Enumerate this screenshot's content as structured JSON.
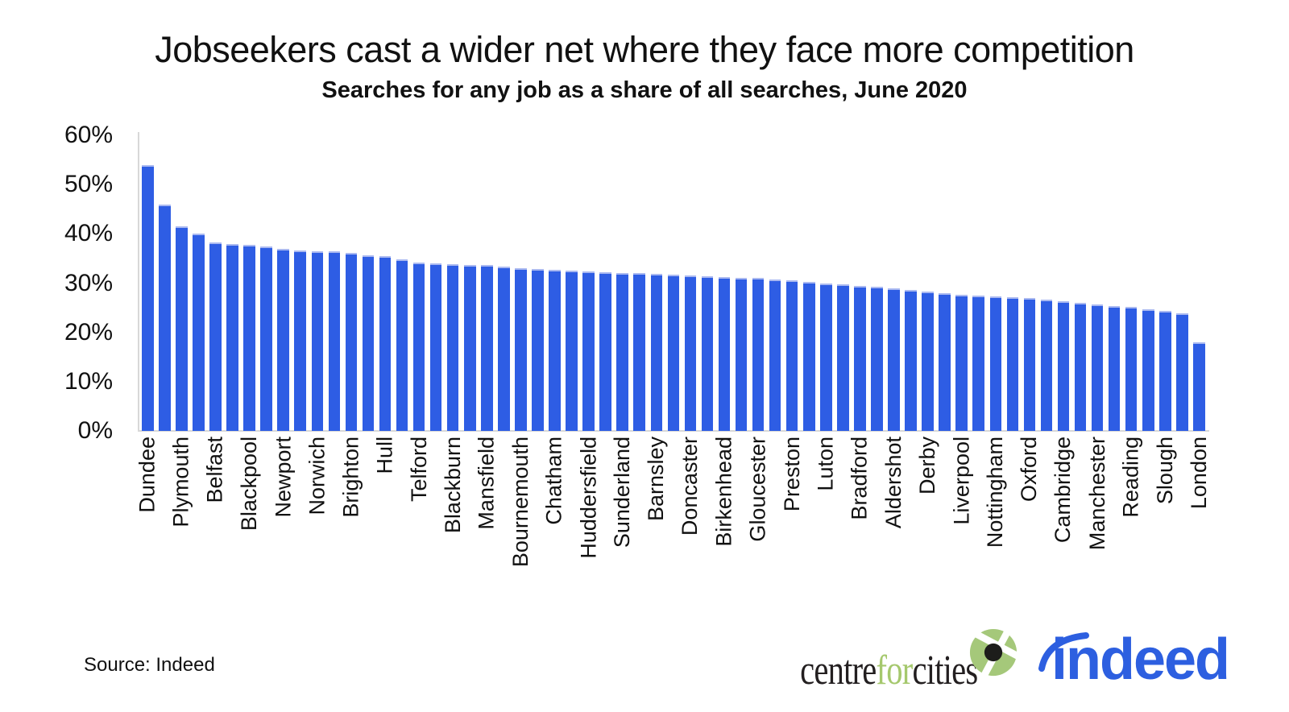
{
  "header": {
    "title": "Jobseekers cast a wider net where they face more competition",
    "subtitle": "Searches for any job as a share of all searches, June 2020"
  },
  "footer": {
    "source": "Source: Indeed",
    "centreforcities": {
      "part1": "centre",
      "part2": "for",
      "part3": "cities"
    },
    "indeed_wordmark": "indeed"
  },
  "colors": {
    "bar": "#2e5de4",
    "bar_top_cap": "#aab9f1",
    "axis_line": "#d8d8d8",
    "text": "#111111",
    "cfc_black": "#231f20",
    "cfc_green": "#a5c86d",
    "indeed_blue": "#2d5fe0"
  },
  "chart_data": {
    "type": "bar",
    "title": "Jobseekers cast a wider net where they face more competition",
    "subtitle": "Searches for any job as a share of all searches, June 2020",
    "unit": "percent",
    "ylim": [
      0,
      60
    ],
    "ytick_values": [
      0,
      10,
      20,
      30,
      40,
      50,
      60
    ],
    "ytick_labels": [
      "0%",
      "10%",
      "20%",
      "30%",
      "40%",
      "50%",
      "60%"
    ],
    "grid": false,
    "legend": "none",
    "note": "63 bars total; only every other bar carries a visible city label",
    "bars": [
      {
        "label": "Dundee",
        "value": 54.0
      },
      {
        "label": "",
        "value": 46.0
      },
      {
        "label": "Plymouth",
        "value": 41.5
      },
      {
        "label": "",
        "value": 40.0
      },
      {
        "label": "Belfast",
        "value": 38.2
      },
      {
        "label": "",
        "value": 38.0
      },
      {
        "label": "Blackpool",
        "value": 37.8
      },
      {
        "label": "",
        "value": 37.4
      },
      {
        "label": "Newport",
        "value": 37.0
      },
      {
        "label": "",
        "value": 36.6
      },
      {
        "label": "Norwich",
        "value": 36.5
      },
      {
        "label": "",
        "value": 36.4
      },
      {
        "label": "Brighton",
        "value": 36.1
      },
      {
        "label": "",
        "value": 35.7
      },
      {
        "label": "Hull",
        "value": 35.4
      },
      {
        "label": "",
        "value": 34.9
      },
      {
        "label": "Telford",
        "value": 34.2
      },
      {
        "label": "",
        "value": 34.0
      },
      {
        "label": "Blackburn",
        "value": 33.8
      },
      {
        "label": "",
        "value": 33.7
      },
      {
        "label": "Mansfield",
        "value": 33.6
      },
      {
        "label": "",
        "value": 33.4
      },
      {
        "label": "Bournemouth",
        "value": 33.1
      },
      {
        "label": "",
        "value": 32.9
      },
      {
        "label": "Chatham",
        "value": 32.7
      },
      {
        "label": "",
        "value": 32.5
      },
      {
        "label": "Huddersfield",
        "value": 32.3
      },
      {
        "label": "",
        "value": 32.2
      },
      {
        "label": "Sunderland",
        "value": 32.1
      },
      {
        "label": "",
        "value": 32.0
      },
      {
        "label": "Barnsley",
        "value": 31.8
      },
      {
        "label": "",
        "value": 31.7
      },
      {
        "label": "Doncaster",
        "value": 31.6
      },
      {
        "label": "",
        "value": 31.4
      },
      {
        "label": "Birkenhead",
        "value": 31.3
      },
      {
        "label": "",
        "value": 31.1
      },
      {
        "label": "Gloucester",
        "value": 31.0
      },
      {
        "label": "",
        "value": 30.8
      },
      {
        "label": "Preston",
        "value": 30.6
      },
      {
        "label": "",
        "value": 30.3
      },
      {
        "label": "Luton",
        "value": 30.0
      },
      {
        "label": "",
        "value": 29.7
      },
      {
        "label": "Bradford",
        "value": 29.5
      },
      {
        "label": "",
        "value": 29.2
      },
      {
        "label": "Aldershot",
        "value": 28.9
      },
      {
        "label": "",
        "value": 28.6
      },
      {
        "label": "Derby",
        "value": 28.3
      },
      {
        "label": "",
        "value": 28.0
      },
      {
        "label": "Liverpool",
        "value": 27.7
      },
      {
        "label": "",
        "value": 27.5
      },
      {
        "label": "Nottingham",
        "value": 27.3
      },
      {
        "label": "",
        "value": 27.1
      },
      {
        "label": "Oxford",
        "value": 26.9
      },
      {
        "label": "",
        "value": 26.6
      },
      {
        "label": "Cambridge",
        "value": 26.4
      },
      {
        "label": "",
        "value": 26.0
      },
      {
        "label": "Manchester",
        "value": 25.6
      },
      {
        "label": "",
        "value": 25.3
      },
      {
        "label": "Reading",
        "value": 25.1
      },
      {
        "label": "",
        "value": 24.7
      },
      {
        "label": "Slough",
        "value": 24.4
      },
      {
        "label": "",
        "value": 23.9
      },
      {
        "label": "London",
        "value": 18.0
      }
    ]
  }
}
